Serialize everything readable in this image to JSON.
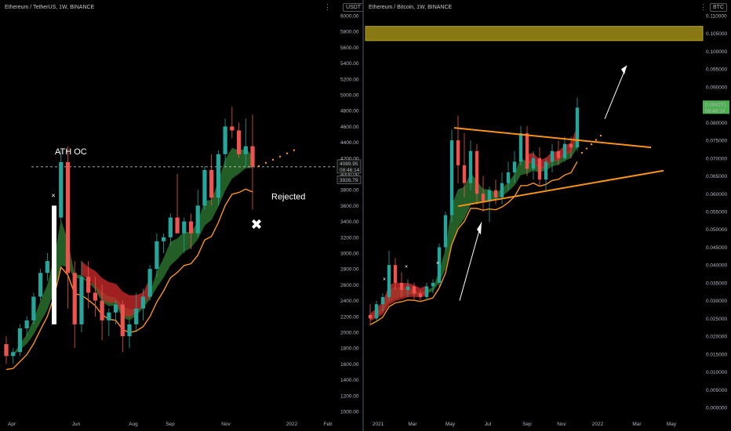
{
  "left": {
    "title": "Ethereum / TetherUS, 1W, BINANCE",
    "unit": "USDT",
    "menu_dots": "⋮",
    "price_box_top": "4089.95",
    "price_box_sub": "08:46:14",
    "price_box_bottom": "3926.79",
    "annotation_ath": "ATH OC",
    "annotation_rejected": "Rejected",
    "x_marker": "×",
    "cross_mark": "✖",
    "colors": {
      "up": "#26a69a",
      "down": "#ef5350",
      "ribbon_green": "#2e7d32",
      "ribbon_red": "#c62828",
      "ma": "#f7931a"
    }
  },
  "right": {
    "title": "Ethereum / Bitcoin, 1W, BINANCE",
    "unit": "BTC",
    "menu_dots": "⋮",
    "price_box_top": "0.084151",
    "price_box_sub": "08:46:14",
    "x_marker": "×",
    "colors": {
      "band": "#b5a21b",
      "triangle": "#f7931a",
      "arrow": "#ffffff"
    }
  },
  "chart_data": [
    {
      "type": "candlestick",
      "title": "Ethereum / TetherUS, 1W, BINANCE",
      "y_unit": "USDT",
      "ylim": [
        1000,
        6000
      ],
      "yticks": [
        1000,
        1200,
        1400,
        1600,
        1800,
        2000,
        2200,
        2400,
        2600,
        2800,
        3000,
        3200,
        3400,
        3600,
        3800,
        4000,
        4200,
        4400,
        4600,
        4800,
        5000,
        5200,
        5400,
        5600,
        5800,
        6000
      ],
      "xticks": [
        "Apr",
        "Jun",
        "Aug",
        "Sep",
        "Nov",
        "2022",
        "Feb"
      ],
      "ath_line": 4090,
      "last_close": 4089.95,
      "candles": [
        [
          1850,
          1950,
          1600,
          1700
        ],
        [
          1700,
          1800,
          1600,
          1750
        ],
        [
          1750,
          2100,
          1700,
          2050
        ],
        [
          2050,
          2200,
          1950,
          2150
        ],
        [
          2150,
          2500,
          2100,
          2450
        ],
        [
          2450,
          2800,
          2400,
          2750
        ],
        [
          2750,
          3000,
          2650,
          2900
        ],
        [
          2900,
          3500,
          2850,
          3450
        ],
        [
          3450,
          4300,
          3400,
          4150
        ],
        [
          4150,
          4350,
          2300,
          2750
        ],
        [
          2750,
          2900,
          1800,
          2100
        ],
        [
          2100,
          2900,
          2000,
          2700
        ],
        [
          2700,
          2900,
          2300,
          2500
        ],
        [
          2500,
          2700,
          2200,
          2400
        ],
        [
          2400,
          2600,
          1900,
          2150
        ],
        [
          2150,
          2300,
          1950,
          2250
        ],
        [
          2250,
          2400,
          2100,
          2350
        ],
        [
          2350,
          2400,
          1750,
          1950
        ],
        [
          1950,
          2150,
          1800,
          2100
        ],
        [
          2100,
          2500,
          2000,
          2300
        ],
        [
          2300,
          2550,
          2150,
          2450
        ],
        [
          2450,
          2850,
          2400,
          2800
        ],
        [
          2800,
          3250,
          2700,
          3150
        ],
        [
          3150,
          3250,
          3000,
          3200
        ],
        [
          3200,
          3500,
          3100,
          3450
        ],
        [
          3450,
          4000,
          3300,
          3250
        ],
        [
          3250,
          3450,
          3000,
          3400
        ],
        [
          3400,
          3500,
          3050,
          3250
        ],
        [
          3250,
          3800,
          3200,
          3600
        ],
        [
          3600,
          4100,
          3550,
          4050
        ],
        [
          4050,
          4250,
          3600,
          3700
        ],
        [
          3700,
          4300,
          3600,
          4250
        ],
        [
          4250,
          4700,
          4100,
          4600
        ],
        [
          4600,
          4850,
          4450,
          4550
        ],
        [
          4550,
          4650,
          4200,
          4250
        ],
        [
          4250,
          4700,
          4100,
          4350
        ],
        [
          4350,
          4750,
          3550,
          4090
        ]
      ]
    },
    {
      "type": "candlestick",
      "title": "Ethereum / Bitcoin, 1W, BINANCE",
      "y_unit": "BTC",
      "ylim": [
        0,
        0.11
      ],
      "yticks": [
        0.0,
        0.005,
        0.01,
        0.015,
        0.02,
        0.025,
        0.03,
        0.035,
        0.04,
        0.045,
        0.05,
        0.055,
        0.06,
        0.065,
        0.07,
        0.075,
        0.08,
        0.085,
        0.09,
        0.095,
        0.1,
        0.105,
        0.11
      ],
      "xticks": [
        "2021",
        "Mar",
        "May",
        "Jul",
        "Sep",
        "Nov",
        "2022",
        "Mar",
        "May"
      ],
      "resistance_band": [
        0.103,
        0.107
      ],
      "last_close": 0.084151,
      "candles": [
        [
          0.026,
          0.029,
          0.023,
          0.025
        ],
        [
          0.025,
          0.03,
          0.024,
          0.029
        ],
        [
          0.029,
          0.032,
          0.027,
          0.031
        ],
        [
          0.031,
          0.044,
          0.03,
          0.04
        ],
        [
          0.04,
          0.042,
          0.033,
          0.035
        ],
        [
          0.035,
          0.038,
          0.031,
          0.033
        ],
        [
          0.033,
          0.036,
          0.031,
          0.034
        ],
        [
          0.034,
          0.035,
          0.03,
          0.032
        ],
        [
          0.032,
          0.033,
          0.03,
          0.031
        ],
        [
          0.031,
          0.035,
          0.03,
          0.034
        ],
        [
          0.034,
          0.036,
          0.032,
          0.035
        ],
        [
          0.035,
          0.046,
          0.034,
          0.045
        ],
        [
          0.045,
          0.055,
          0.044,
          0.054
        ],
        [
          0.054,
          0.078,
          0.052,
          0.075
        ],
        [
          0.075,
          0.082,
          0.063,
          0.068
        ],
        [
          0.068,
          0.077,
          0.059,
          0.063
        ],
        [
          0.063,
          0.075,
          0.061,
          0.072
        ],
        [
          0.072,
          0.074,
          0.057,
          0.06
        ],
        [
          0.06,
          0.065,
          0.055,
          0.058
        ],
        [
          0.058,
          0.062,
          0.052,
          0.061
        ],
        [
          0.061,
          0.064,
          0.057,
          0.059
        ],
        [
          0.059,
          0.066,
          0.057,
          0.063
        ],
        [
          0.063,
          0.069,
          0.061,
          0.066
        ],
        [
          0.066,
          0.072,
          0.063,
          0.069
        ],
        [
          0.069,
          0.079,
          0.068,
          0.077
        ],
        [
          0.077,
          0.079,
          0.065,
          0.067
        ],
        [
          0.067,
          0.072,
          0.064,
          0.07
        ],
        [
          0.07,
          0.073,
          0.062,
          0.064
        ],
        [
          0.064,
          0.07,
          0.061,
          0.069
        ],
        [
          0.069,
          0.074,
          0.066,
          0.072
        ],
        [
          0.072,
          0.075,
          0.068,
          0.07
        ],
        [
          0.07,
          0.076,
          0.069,
          0.074
        ],
        [
          0.074,
          0.076,
          0.07,
          0.073
        ],
        [
          0.073,
          0.087,
          0.072,
          0.0842
        ]
      ]
    }
  ]
}
